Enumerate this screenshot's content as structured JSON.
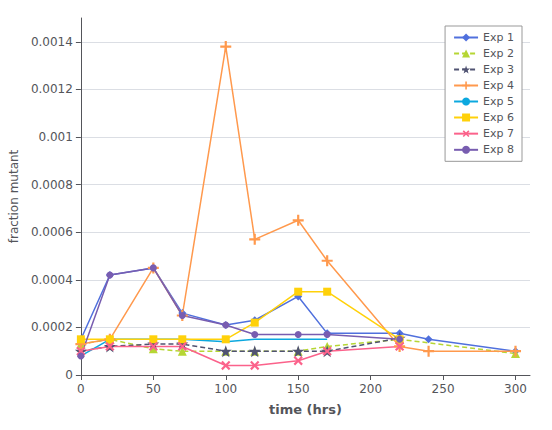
{
  "chart_data": {
    "type": "line",
    "xlabel": "time (hrs)",
    "ylabel": "fraction mutant",
    "xlim": [
      0,
      310
    ],
    "ylim": [
      0,
      0.0015
    ],
    "xticks": [
      0,
      50,
      100,
      150,
      200,
      250,
      300
    ],
    "yticks": [
      0,
      0.0002,
      0.0004,
      0.0006,
      0.0008,
      0.001,
      0.0012,
      0.0014
    ],
    "grid": "y",
    "legend": "upper right",
    "series": [
      {
        "name": "Exp 1",
        "marker": "diamond",
        "line_style": "solid",
        "x": [
          0,
          20,
          50,
          70,
          100,
          120,
          150,
          170,
          220,
          240,
          300
        ],
        "values": [
          0.00015,
          0.00042,
          0.00045,
          0.00026,
          0.00021,
          0.00023,
          0.00033,
          0.000175,
          0.000175,
          0.00015,
          0.0001
        ]
      },
      {
        "name": "Exp 2",
        "marker": "triangle",
        "line_style": "dashed",
        "x": [
          0,
          20,
          50,
          70,
          100,
          120,
          150,
          170,
          220,
          300
        ],
        "values": [
          0.00013,
          0.00015,
          0.00011,
          0.0001,
          0.0001,
          0.0001,
          0.0001,
          0.00012,
          0.00015,
          9e-05
        ]
      },
      {
        "name": "Exp 3",
        "marker": "star",
        "line_style": "dashed",
        "x": [
          0,
          20,
          50,
          70,
          100,
          120,
          150,
          170,
          220
        ],
        "values": [
          0.0001,
          0.00012,
          0.00013,
          0.00013,
          0.0001,
          0.0001,
          0.0001,
          0.0001,
          0.000155
        ]
      },
      {
        "name": "Exp 4",
        "marker": "plus",
        "line_style": "solid",
        "x": [
          0,
          20,
          50,
          70,
          100,
          120,
          150,
          170,
          220,
          240,
          300
        ],
        "values": [
          0.00013,
          0.00015,
          0.00045,
          0.00025,
          0.00138,
          0.00057,
          0.00065,
          0.00048,
          0.00012,
          0.0001,
          0.0001
        ]
      },
      {
        "name": "Exp 5",
        "marker": "none",
        "line_style": "solid",
        "x": [
          0,
          20,
          50,
          70,
          100,
          120,
          150,
          170
        ],
        "values": [
          8e-05,
          0.00015,
          0.00015,
          0.00015,
          0.00014,
          0.00015,
          0.00015,
          0.00015
        ]
      },
      {
        "name": "Exp 6",
        "marker": "square",
        "line_style": "solid",
        "x": [
          0,
          20,
          50,
          70,
          100,
          120,
          150,
          170,
          220
        ],
        "values": [
          0.00015,
          0.00015,
          0.00015,
          0.00015,
          0.00015,
          0.00022,
          0.00035,
          0.00035,
          0.00015
        ]
      },
      {
        "name": "Exp 7",
        "marker": "x",
        "line_style": "solid",
        "x": [
          0,
          20,
          50,
          70,
          100,
          120,
          150,
          170,
          220
        ],
        "values": [
          0.0001,
          0.00012,
          0.00012,
          0.00012,
          4e-05,
          4e-05,
          6e-05,
          0.0001,
          0.00012
        ]
      },
      {
        "name": "Exp 8",
        "marker": "circle",
        "line_style": "solid",
        "x": [
          0,
          20,
          50,
          70,
          100,
          120,
          150,
          170,
          220
        ],
        "values": [
          8e-05,
          0.00042,
          0.00045,
          0.00025,
          0.00021,
          0.00017,
          0.00017,
          0.00017,
          0.00015
        ]
      }
    ]
  }
}
